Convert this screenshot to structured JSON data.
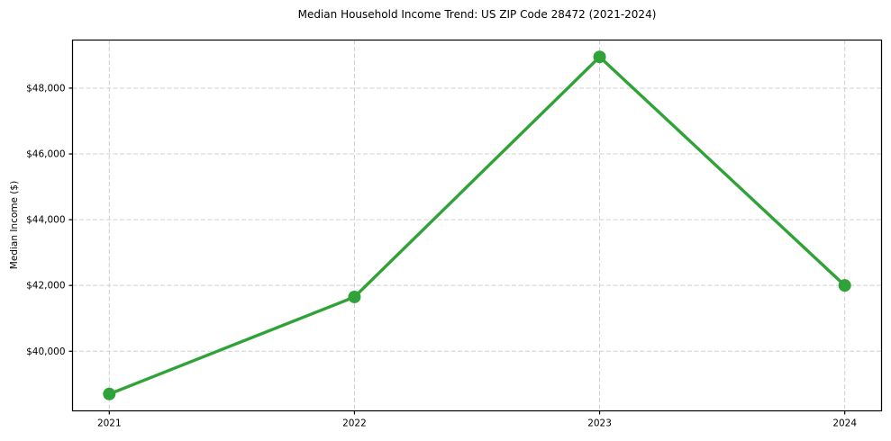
{
  "chart_data": {
    "type": "line",
    "title": "Median Household Income Trend: US ZIP Code 28472 (2021-2024)",
    "xlabel": "",
    "ylabel": "Median Income ($)",
    "categories": [
      "2021",
      "2022",
      "2023",
      "2024"
    ],
    "series": [
      {
        "name": "Median Household Income",
        "values": [
          38700,
          41650,
          48950,
          42000
        ]
      }
    ],
    "yticks": [
      40000,
      42000,
      44000,
      46000,
      48000
    ],
    "ytick_labels": [
      "$40,000",
      "$42,000",
      "$44,000",
      "$46,000",
      "$48,000"
    ],
    "ylim": [
      38187.5,
      49462.5
    ],
    "grid": true,
    "legend": "none",
    "colors": {
      "line": "#2fa338",
      "marker": "#2fa338",
      "grid": "#d0d0d0",
      "spine": "#000000",
      "text": "#000000",
      "background": "#ffffff"
    }
  }
}
